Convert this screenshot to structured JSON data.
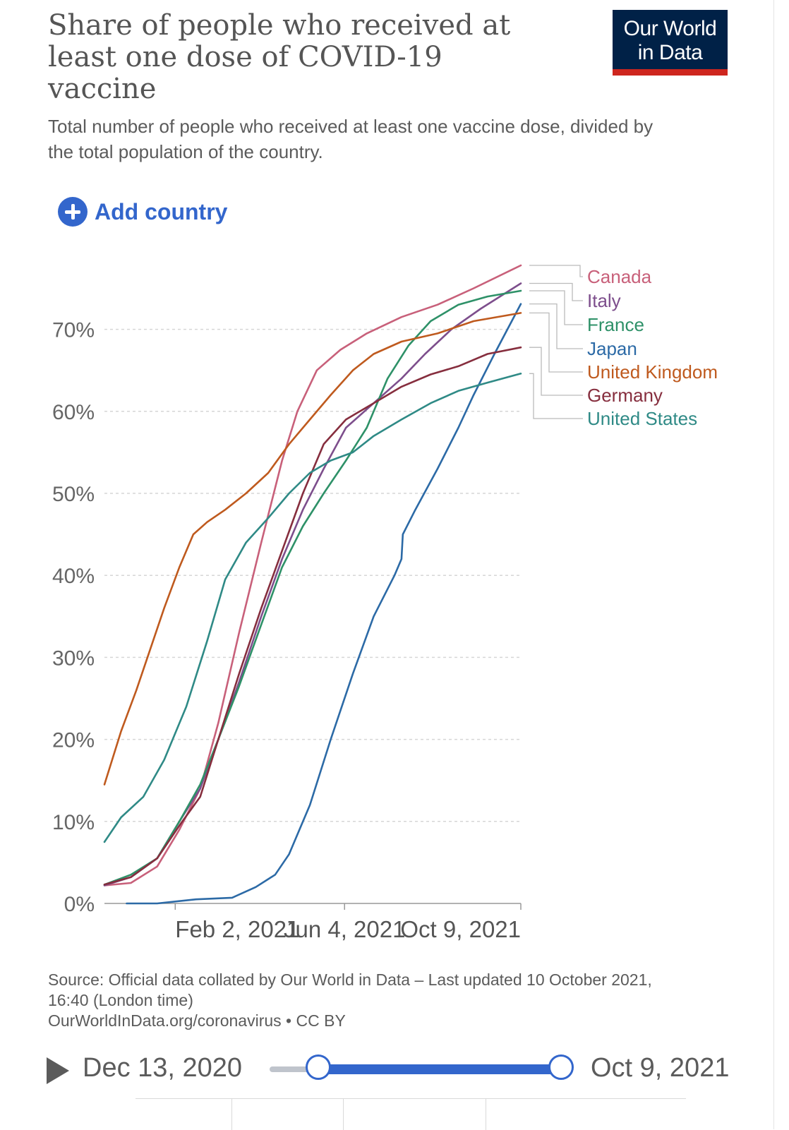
{
  "header": {
    "title": "Share of people who received at least one dose of COVID-19 vaccine",
    "subtitle": "Total number of people who received at least one vaccine dose, divided by the total population of the country.",
    "logo_line1": "Our World",
    "logo_line2": "in Data"
  },
  "controls": {
    "add_country_label": "Add country"
  },
  "footer": {
    "source": "Source: Official data collated by Our World in Data – Last updated 10 October 2021, 16:40 (London time)",
    "link": "OurWorldInData.org/coronavirus • CC BY"
  },
  "timeline": {
    "start_label": "Dec 13, 2020",
    "end_label": "Oct 9, 2021",
    "range_start_fraction": 0.0,
    "range_end_fraction": 1.0
  },
  "colors": {
    "Canada": "#c8607a",
    "Italy": "#7d4e8c",
    "France": "#2e9168",
    "Japan": "#2c6aa6",
    "United Kingdom": "#bf5a1e",
    "Germany": "#862e3e",
    "United States": "#2f8a86",
    "logo_bg": "#002147",
    "logo_bar": "#ce261e",
    "accent": "#3366cc"
  },
  "chart_data": {
    "type": "line",
    "x_type": "date",
    "xlim": [
      "2020-12-13",
      "2021-10-09"
    ],
    "ylim": [
      0,
      75
    ],
    "y_unit": "%",
    "yticks": [
      0,
      10,
      20,
      30,
      40,
      50,
      60,
      70
    ],
    "ytick_labels": [
      "0%",
      "10%",
      "20%",
      "30%",
      "40%",
      "50%",
      "60%",
      "70%"
    ],
    "xticks": [
      "2021-02-02",
      "2021-06-04",
      "2021-10-09"
    ],
    "xtick_labels": [
      "Feb 2, 2021",
      "Jun 4, 2021",
      "Oct 9, 2021"
    ],
    "grid": "horizontal dashed",
    "legend": "right, labels at line ends",
    "series": [
      {
        "name": "Canada",
        "points": [
          [
            "2020-12-13",
            2.2
          ],
          [
            "2021-01-01",
            2.5
          ],
          [
            "2021-01-20",
            4.5
          ],
          [
            "2021-02-05",
            9
          ],
          [
            "2021-02-20",
            14
          ],
          [
            "2021-03-05",
            22
          ],
          [
            "2021-03-20",
            33
          ],
          [
            "2021-04-05",
            44
          ],
          [
            "2021-04-20",
            54
          ],
          [
            "2021-05-01",
            60
          ],
          [
            "2021-05-15",
            65
          ],
          [
            "2021-06-01",
            67.5
          ],
          [
            "2021-06-20",
            69.5
          ],
          [
            "2021-07-15",
            71.5
          ],
          [
            "2021-08-10",
            73
          ],
          [
            "2021-09-05",
            75
          ],
          [
            "2021-10-09",
            77.8
          ]
        ]
      },
      {
        "name": "Italy",
        "points": [
          [
            "2020-12-13",
            2.2
          ],
          [
            "2021-01-01",
            3.2
          ],
          [
            "2021-01-20",
            5.5
          ],
          [
            "2021-02-05",
            10
          ],
          [
            "2021-02-20",
            14
          ],
          [
            "2021-03-05",
            20
          ],
          [
            "2021-03-20",
            27
          ],
          [
            "2021-04-05",
            35
          ],
          [
            "2021-04-20",
            42
          ],
          [
            "2021-05-05",
            48
          ],
          [
            "2021-05-20",
            53
          ],
          [
            "2021-06-05",
            58
          ],
          [
            "2021-06-25",
            61
          ],
          [
            "2021-07-15",
            64
          ],
          [
            "2021-08-01",
            67
          ],
          [
            "2021-08-20",
            70
          ],
          [
            "2021-09-10",
            72.5
          ],
          [
            "2021-10-09",
            75.6
          ]
        ]
      },
      {
        "name": "France",
        "points": [
          [
            "2020-12-13",
            2.3
          ],
          [
            "2021-01-01",
            3.5
          ],
          [
            "2021-01-20",
            5.5
          ],
          [
            "2021-02-05",
            10
          ],
          [
            "2021-02-20",
            14.5
          ],
          [
            "2021-03-05",
            20
          ],
          [
            "2021-03-20",
            26.5
          ],
          [
            "2021-04-05",
            34
          ],
          [
            "2021-04-20",
            41
          ],
          [
            "2021-05-05",
            46
          ],
          [
            "2021-05-20",
            50
          ],
          [
            "2021-06-05",
            54
          ],
          [
            "2021-06-20",
            58
          ],
          [
            "2021-07-05",
            64
          ],
          [
            "2021-07-20",
            68
          ],
          [
            "2021-08-05",
            71
          ],
          [
            "2021-08-25",
            73
          ],
          [
            "2021-09-15",
            74
          ],
          [
            "2021-10-09",
            74.7
          ]
        ]
      },
      {
        "name": "Japan",
        "points": [
          [
            "2020-12-29",
            0
          ],
          [
            "2021-01-20",
            0
          ],
          [
            "2021-02-17",
            0.5
          ],
          [
            "2021-03-15",
            0.7
          ],
          [
            "2021-04-01",
            2
          ],
          [
            "2021-04-15",
            3.5
          ],
          [
            "2021-04-25",
            6
          ],
          [
            "2021-05-10",
            12
          ],
          [
            "2021-05-25",
            20
          ],
          [
            "2021-06-10",
            28
          ],
          [
            "2021-06-25",
            35
          ],
          [
            "2021-07-10",
            40
          ],
          [
            "2021-07-15",
            42
          ],
          [
            "2021-07-16",
            45
          ],
          [
            "2021-07-25",
            48
          ],
          [
            "2021-08-10",
            53
          ],
          [
            "2021-08-25",
            58
          ],
          [
            "2021-09-05",
            62
          ],
          [
            "2021-09-20",
            67
          ],
          [
            "2021-10-09",
            73.1
          ]
        ]
      },
      {
        "name": "United Kingdom",
        "points": [
          [
            "2020-12-13",
            14.5
          ],
          [
            "2020-12-25",
            21
          ],
          [
            "2021-01-05",
            26
          ],
          [
            "2021-01-15",
            31
          ],
          [
            "2021-01-25",
            36
          ],
          [
            "2021-02-05",
            41
          ],
          [
            "2021-02-15",
            45
          ],
          [
            "2021-02-25",
            46.5
          ],
          [
            "2021-03-10",
            48
          ],
          [
            "2021-03-25",
            50
          ],
          [
            "2021-04-10",
            52.5
          ],
          [
            "2021-04-25",
            56
          ],
          [
            "2021-05-10",
            59
          ],
          [
            "2021-05-25",
            62
          ],
          [
            "2021-06-10",
            65
          ],
          [
            "2021-06-25",
            67
          ],
          [
            "2021-07-15",
            68.5
          ],
          [
            "2021-08-10",
            69.5
          ],
          [
            "2021-09-05",
            71
          ],
          [
            "2021-10-09",
            72
          ]
        ]
      },
      {
        "name": "Germany",
        "points": [
          [
            "2020-12-13",
            2.3
          ],
          [
            "2021-01-01",
            3.2
          ],
          [
            "2021-01-20",
            5.5
          ],
          [
            "2021-02-05",
            9.5
          ],
          [
            "2021-02-20",
            13
          ],
          [
            "2021-03-05",
            20
          ],
          [
            "2021-03-20",
            28
          ],
          [
            "2021-04-05",
            36
          ],
          [
            "2021-04-20",
            43
          ],
          [
            "2021-05-05",
            50
          ],
          [
            "2021-05-20",
            56
          ],
          [
            "2021-06-05",
            59
          ],
          [
            "2021-06-25",
            61
          ],
          [
            "2021-07-15",
            63
          ],
          [
            "2021-08-05",
            64.5
          ],
          [
            "2021-08-25",
            65.5
          ],
          [
            "2021-09-15",
            67
          ],
          [
            "2021-10-09",
            67.8
          ]
        ]
      },
      {
        "name": "United States",
        "points": [
          [
            "2020-12-13",
            7.5
          ],
          [
            "2020-12-25",
            10.5
          ],
          [
            "2021-01-10",
            13
          ],
          [
            "2021-01-25",
            17.5
          ],
          [
            "2021-02-10",
            24
          ],
          [
            "2021-02-25",
            32
          ],
          [
            "2021-03-10",
            39.5
          ],
          [
            "2021-03-25",
            44
          ],
          [
            "2021-04-10",
            47
          ],
          [
            "2021-04-25",
            50
          ],
          [
            "2021-05-10",
            52.5
          ],
          [
            "2021-05-25",
            54
          ],
          [
            "2021-06-10",
            55
          ],
          [
            "2021-06-25",
            57
          ],
          [
            "2021-07-15",
            59
          ],
          [
            "2021-08-05",
            61
          ],
          [
            "2021-08-25",
            62.5
          ],
          [
            "2021-09-15",
            63.5
          ],
          [
            "2021-10-09",
            64.6
          ]
        ]
      }
    ]
  }
}
